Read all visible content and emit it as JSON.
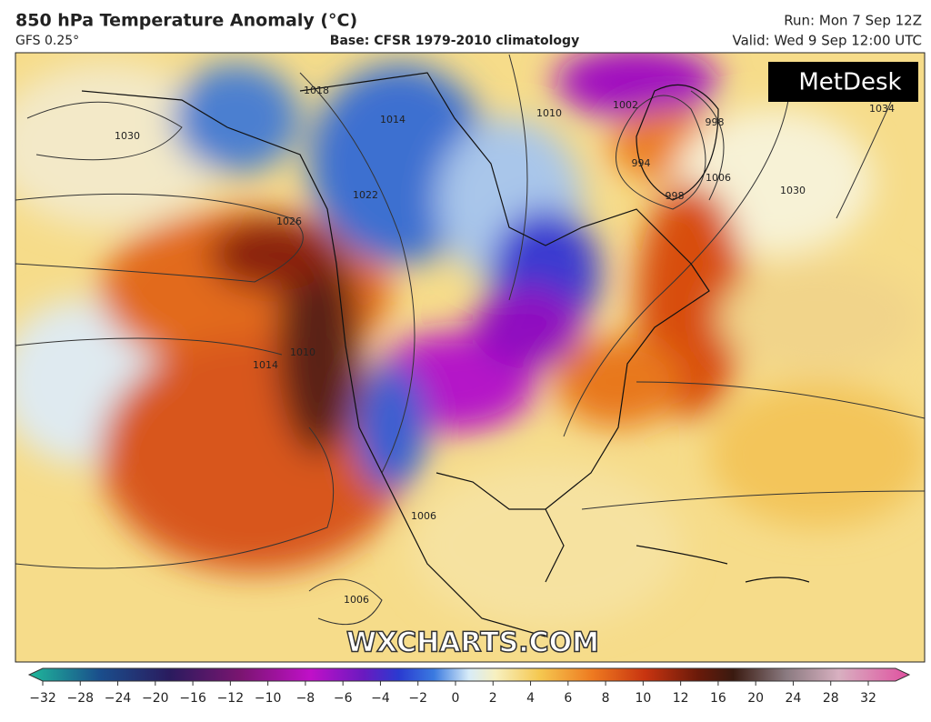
{
  "header": {
    "title": "850 hPa Temperature Anomaly (°C)",
    "model": "GFS 0.25°",
    "base": "Base: CFSR 1979-2010 climatology",
    "run": "Run: Mon 7 Sep 12Z",
    "valid": "Valid: Wed 9 Sep 12:00 UTC"
  },
  "logo": "MetDesk",
  "watermark": "WXCHARTS.COM",
  "isobar_labels": [
    "1030",
    "1018",
    "1014",
    "1022",
    "1026",
    "1010",
    "1014",
    "1006",
    "1006",
    "1002",
    "998",
    "994",
    "998",
    "1006",
    "1030",
    "1034",
    "1010"
  ],
  "colorbar": {
    "ticks": [
      {
        "value": -32,
        "label": "−32"
      },
      {
        "value": -28,
        "label": "−28"
      },
      {
        "value": -24,
        "label": "−24"
      },
      {
        "value": -20,
        "label": "−20"
      },
      {
        "value": -16,
        "label": "−16"
      },
      {
        "value": -12,
        "label": "−12"
      },
      {
        "value": -10,
        "label": "−10"
      },
      {
        "value": -8,
        "label": "−8"
      },
      {
        "value": -6,
        "label": "−6"
      },
      {
        "value": -4,
        "label": "−4"
      },
      {
        "value": -2,
        "label": "−2"
      },
      0,
      2,
      4,
      6,
      8,
      10,
      12,
      16,
      20,
      24,
      28,
      32
    ]
  }
}
